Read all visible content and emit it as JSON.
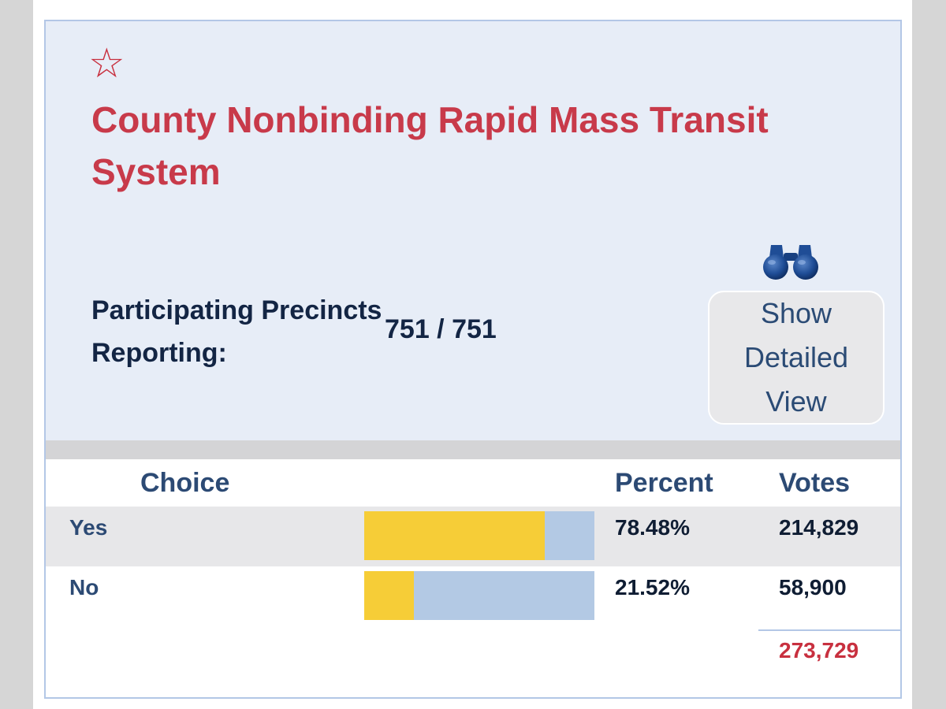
{
  "contest": {
    "star_icon": "star-outline-icon",
    "title": "County Nonbinding Rapid Mass Transit System"
  },
  "precincts": {
    "label": "Participating Precincts Reporting:",
    "value": "751 / 751"
  },
  "detail_button": {
    "icon": "binoculars-icon",
    "label": "Show Detailed View"
  },
  "table": {
    "headers": {
      "choice": "Choice",
      "percent": "Percent",
      "votes": "Votes"
    },
    "rows": [
      {
        "choice": "Yes",
        "percent": "78.48%",
        "votes": "214,829",
        "share": 0.7848
      },
      {
        "choice": "No",
        "percent": "21.52%",
        "votes": "58,900",
        "share": 0.2152
      }
    ],
    "total_votes": "273,729"
  },
  "colors": {
    "accent_red": "#c83a4a",
    "bar_fill": "#f6cd37",
    "bar_track": "#b3c9e4",
    "header_bg": "#e7edf7",
    "text_navy": "#2c4a74"
  }
}
